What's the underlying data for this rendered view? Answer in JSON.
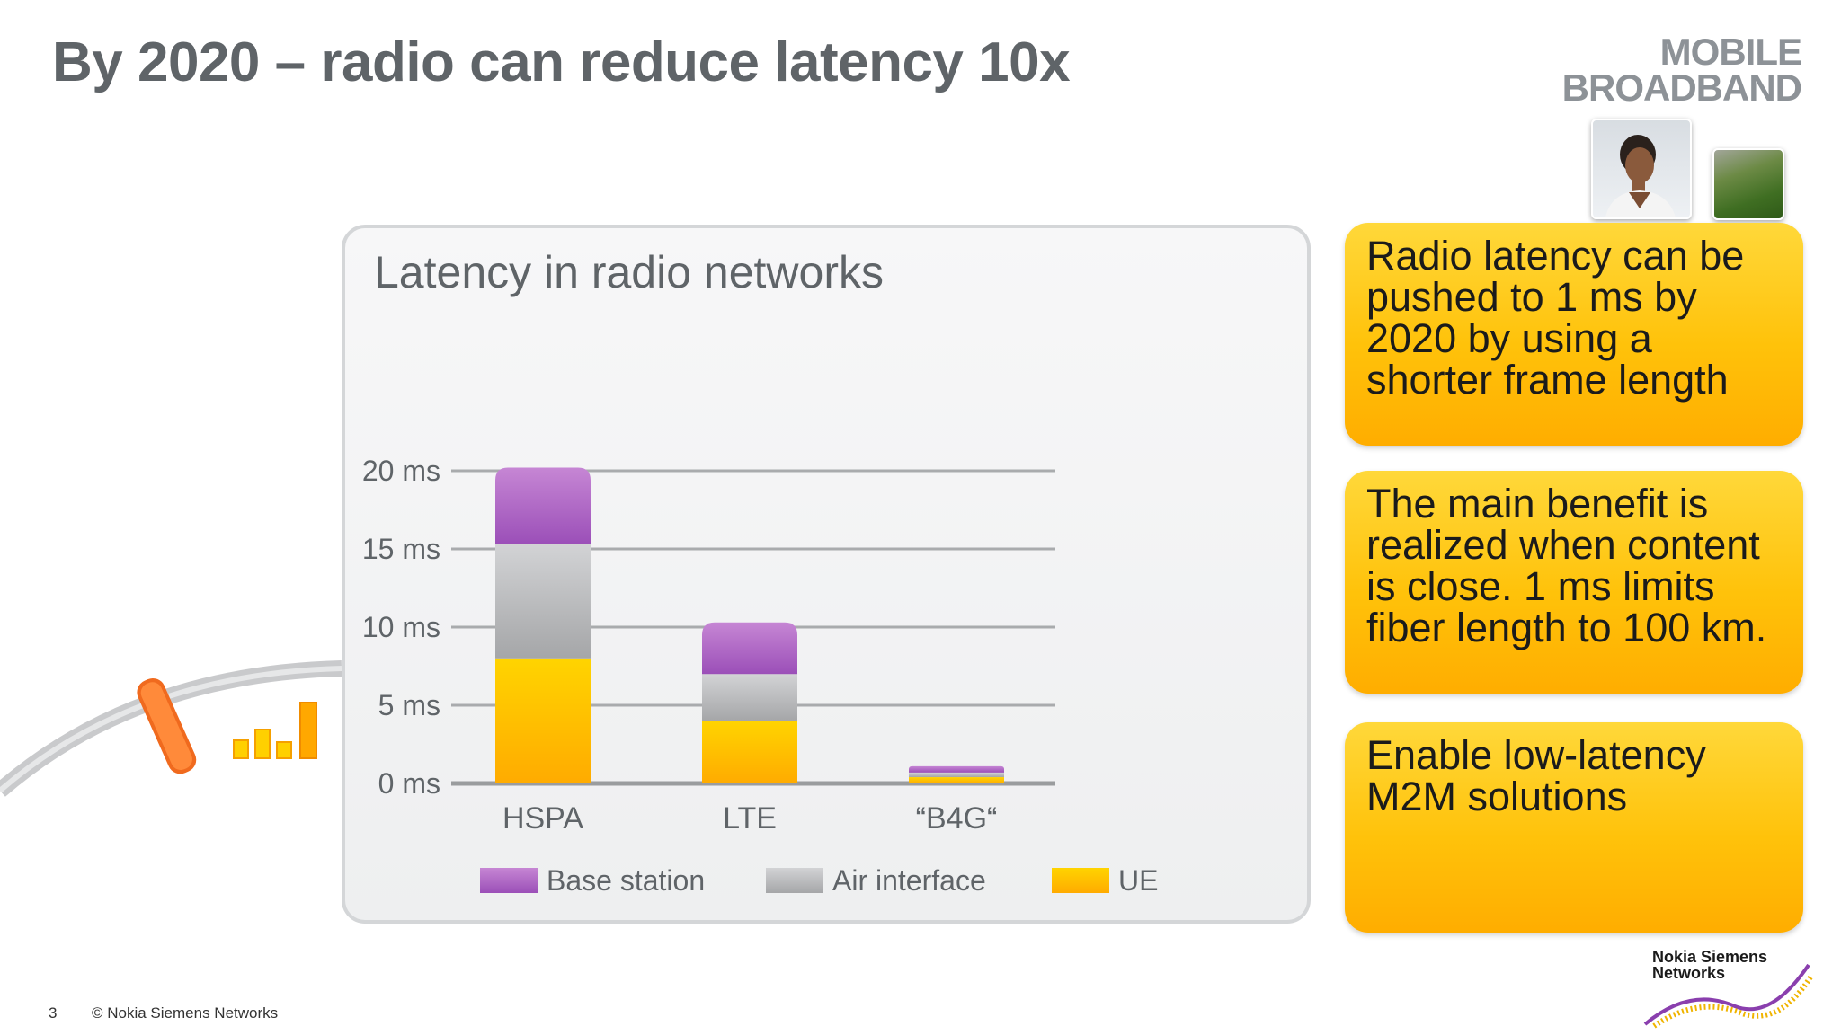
{
  "slide": {
    "title": "By 2020 – radio can reduce latency 10x",
    "brand_line1": "MOBILE",
    "brand_line2": "BROADBAND",
    "page_number": "3",
    "copyright": "© Nokia Siemens Networks",
    "logo_line1": "Nokia Siemens",
    "logo_line2": "Networks"
  },
  "callouts": [
    {
      "text": "Radio latency can be pushed to 1 ms by 2020 by using a shorter frame length"
    },
    {
      "text": "The main benefit is realized when content is close. 1 ms limits fiber length to 100 km."
    },
    {
      "text": "Enable low-latency M2M solutions"
    }
  ],
  "chart_data": {
    "type": "bar",
    "stacked": true,
    "title": "Latency in radio networks",
    "categories": [
      "HSPA",
      "LTE",
      "“B4G“"
    ],
    "series": [
      {
        "name": "UE",
        "values": [
          8,
          4,
          0.4
        ],
        "color": "#ffc107"
      },
      {
        "name": "Air interface",
        "values": [
          7.3,
          3,
          0.3
        ],
        "color": "#b8b9bb"
      },
      {
        "name": "Base station",
        "values": [
          4.9,
          3.3,
          0.4
        ],
        "color": "#b070c8"
      }
    ],
    "legend_order": [
      "Base station",
      "Air interface",
      "UE"
    ],
    "yticks": [
      "0 ms",
      "5 ms",
      "10 ms",
      "15 ms",
      "20 ms"
    ],
    "ylim": [
      0,
      20
    ],
    "grid": true,
    "legend_position": "bottom"
  },
  "colors": {
    "accent_yellow": "#ffc20a",
    "purple": "#b070c8",
    "gray": "#b8b9bb",
    "title_gray": "#5f6468"
  },
  "icons": [
    "user-photo-icon",
    "grass-photo-icon",
    "phone-icon",
    "signal-bars-icon",
    "nsn-swoosh-icon"
  ]
}
